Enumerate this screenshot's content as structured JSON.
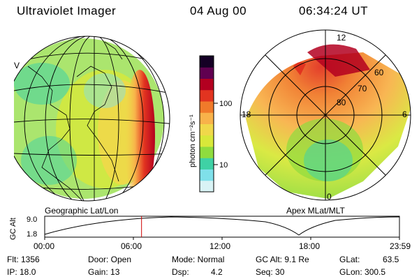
{
  "header": {
    "title": "Ultraviolet Imager",
    "date": "04 Aug 00",
    "time": "06:34:24 UT"
  },
  "left_panel": {
    "label": "Geographic Lat/Lon",
    "edge_letter": "V"
  },
  "colorbar": {
    "unit": "photon cm⁻²s⁻¹",
    "tick_100": "100",
    "tick_10": "10",
    "colors": [
      "#d9f3f5",
      "#7fe0ea",
      "#3fd1a5",
      "#8fdc3e",
      "#d8e83a",
      "#f0d84a",
      "#f8b24a",
      "#f07a2a",
      "#e23420",
      "#b30020",
      "#600050",
      "#150025"
    ]
  },
  "right_panel": {
    "label": "Apex MLat/MLT",
    "mlt_12": "12",
    "mlt_18": "18",
    "mlt_6": "6",
    "mlt_0": "0",
    "lat_60": "60",
    "lat_70": "70",
    "lat_80": "80"
  },
  "orbit": {
    "axis_label": "GC Alt",
    "y_top": "9.0",
    "y_bottom": "1.8",
    "times": [
      "00:00",
      "06:00",
      "12:00",
      "18:00",
      "23:59"
    ],
    "marker_time_fraction": 0.273
  },
  "info": {
    "flt": "Flt: 1356",
    "ip": "IP: 18.0",
    "door": "Door: Open",
    "gain": "Gain: 13",
    "mode": "Mode: Normal",
    "dsp": "Dsp:",
    "dsp_val": "4.2",
    "gcalt": "GC Alt: 9.1 Re",
    "seq": "Seq: 30",
    "glat": "GLat:",
    "glat_val": "63.5",
    "glon": "GLon: 300.5"
  }
}
